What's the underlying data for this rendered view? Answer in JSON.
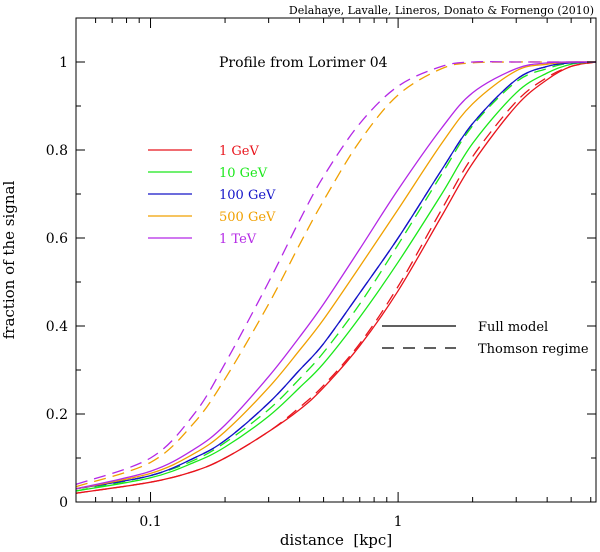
{
  "credit": "Delahaye, Lavalle, Lineros, Donato & Fornengo (2010)",
  "chart_data": {
    "type": "line",
    "title": "Profile from Lorimer 04",
    "xlabel": "distance  [kpc]",
    "ylabel": "fraction of the signal",
    "xscale": "log",
    "xlim": [
      0.05,
      6.3
    ],
    "ylim": [
      0,
      1.1
    ],
    "xticks": [
      {
        "value": 0.1,
        "label": "0.1"
      },
      {
        "value": 1,
        "label": "1"
      }
    ],
    "yticks": [
      {
        "value": 0,
        "label": "0"
      },
      {
        "value": 0.2,
        "label": "0.2"
      },
      {
        "value": 0.4,
        "label": "0.4"
      },
      {
        "value": 0.6,
        "label": "0.6"
      },
      {
        "value": 0.8,
        "label": "0.8"
      },
      {
        "value": 1,
        "label": "1"
      }
    ],
    "legend_energy": "left-middle",
    "legend_style": "right-middle",
    "style_legend": [
      {
        "label": "Full model",
        "dash": "solid"
      },
      {
        "label": "Thomson regime",
        "dash": "dashed"
      }
    ],
    "series": [
      {
        "name": "1 GeV",
        "color": "#e8141c",
        "full": {
          "x": [
            0.05,
            0.1,
            0.15,
            0.2,
            0.3,
            0.4,
            0.5,
            0.7,
            1.0,
            1.5,
            2.0,
            3.0,
            4.0,
            5.0,
            6.3
          ],
          "y": [
            0.02,
            0.045,
            0.07,
            0.1,
            0.16,
            0.21,
            0.26,
            0.355,
            0.48,
            0.65,
            0.77,
            0.9,
            0.96,
            0.99,
            1.0
          ]
        },
        "thomson": {
          "x": [
            0.05,
            0.1,
            0.15,
            0.2,
            0.3,
            0.4,
            0.5,
            0.7,
            1.0,
            1.5,
            2.0,
            3.0,
            4.0,
            5.0,
            6.3
          ],
          "y": [
            0.02,
            0.045,
            0.07,
            0.1,
            0.16,
            0.215,
            0.265,
            0.36,
            0.49,
            0.665,
            0.785,
            0.91,
            0.965,
            0.99,
            1.0
          ]
        }
      },
      {
        "name": "10 GeV",
        "color": "#1ae81a",
        "full": {
          "x": [
            0.05,
            0.1,
            0.15,
            0.2,
            0.3,
            0.4,
            0.5,
            0.7,
            1.0,
            1.5,
            2.0,
            3.0,
            4.0,
            5.0,
            6.3
          ],
          "y": [
            0.025,
            0.055,
            0.09,
            0.125,
            0.195,
            0.26,
            0.315,
            0.42,
            0.545,
            0.7,
            0.815,
            0.93,
            0.975,
            0.995,
            1.0
          ]
        },
        "thomson": {
          "x": [
            0.05,
            0.1,
            0.15,
            0.2,
            0.3,
            0.4,
            0.5,
            0.7,
            1.0,
            1.5,
            2.0,
            3.0,
            4.0,
            5.0,
            6.3
          ],
          "y": [
            0.025,
            0.06,
            0.095,
            0.135,
            0.21,
            0.28,
            0.34,
            0.45,
            0.585,
            0.745,
            0.855,
            0.955,
            0.985,
            0.998,
            1.0
          ]
        }
      },
      {
        "name": "100 GeV",
        "color": "#1414c8",
        "full": {
          "x": [
            0.05,
            0.1,
            0.15,
            0.2,
            0.3,
            0.4,
            0.5,
            0.7,
            1.0,
            1.5,
            2.0,
            3.0,
            4.0,
            5.0,
            6.3
          ],
          "y": [
            0.03,
            0.06,
            0.1,
            0.14,
            0.225,
            0.3,
            0.36,
            0.475,
            0.6,
            0.755,
            0.86,
            0.96,
            0.99,
            0.998,
            1.0
          ]
        },
        "thomson": {
          "x": [
            0.05,
            0.1,
            0.15,
            0.2,
            0.3,
            0.4,
            0.5,
            0.7,
            1.0,
            1.5,
            2.0,
            3.0,
            4.0,
            5.0,
            6.3
          ],
          "y": [
            0.03,
            0.06,
            0.1,
            0.14,
            0.225,
            0.3,
            0.36,
            0.475,
            0.6,
            0.755,
            0.86,
            0.96,
            0.99,
            0.998,
            1.0
          ]
        }
      },
      {
        "name": "500 GeV",
        "color": "#f0a000",
        "full": {
          "x": [
            0.05,
            0.1,
            0.15,
            0.2,
            0.3,
            0.4,
            0.5,
            0.7,
            1.0,
            1.5,
            2.0,
            3.0,
            4.0,
            5.0,
            6.3
          ],
          "y": [
            0.03,
            0.065,
            0.11,
            0.16,
            0.26,
            0.345,
            0.415,
            0.535,
            0.665,
            0.815,
            0.905,
            0.98,
            0.995,
            1.0,
            1.0
          ]
        },
        "thomson": {
          "x": [
            0.05,
            0.1,
            0.15,
            0.2,
            0.3,
            0.4,
            0.5,
            0.7,
            1.0,
            1.5,
            2.0,
            3.0,
            4.0,
            5.0,
            6.3
          ],
          "y": [
            0.035,
            0.09,
            0.18,
            0.28,
            0.45,
            0.585,
            0.685,
            0.82,
            0.925,
            0.985,
            0.998,
            1.0,
            1.0,
            1.0,
            1.0
          ]
        }
      },
      {
        "name": "1 TeV",
        "color": "#b428e6",
        "full": {
          "x": [
            0.05,
            0.1,
            0.15,
            0.2,
            0.3,
            0.4,
            0.5,
            0.7,
            1.0,
            1.5,
            2.0,
            3.0,
            4.0,
            5.0,
            6.3
          ],
          "y": [
            0.03,
            0.07,
            0.12,
            0.175,
            0.285,
            0.375,
            0.45,
            0.575,
            0.71,
            0.85,
            0.93,
            0.985,
            0.998,
            1.0,
            1.0
          ]
        },
        "thomson": {
          "x": [
            0.05,
            0.1,
            0.15,
            0.2,
            0.3,
            0.4,
            0.5,
            0.7,
            1.0,
            1.5,
            2.0,
            3.0,
            4.0,
            5.0,
            6.3
          ],
          "y": [
            0.04,
            0.1,
            0.2,
            0.315,
            0.5,
            0.64,
            0.74,
            0.86,
            0.945,
            0.99,
            1.0,
            1.0,
            1.0,
            1.0,
            1.0
          ]
        }
      }
    ]
  }
}
